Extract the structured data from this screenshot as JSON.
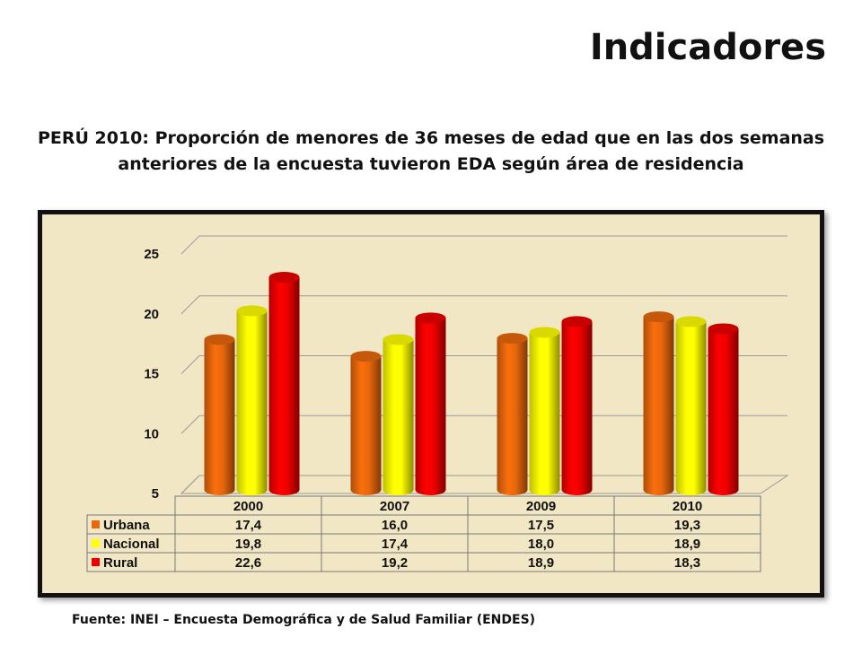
{
  "slide": {
    "title": "Indicadores",
    "chart_title_line1": "PERÚ 2010: Proporción de menores de 36 meses de edad que en las dos semanas",
    "chart_title_line2": "anteriores de la encuesta tuvieron EDA según área de residencia",
    "source": "Fuente: INEI – Encuesta Demográfica y de Salud Familiar (ENDES)"
  },
  "chart_data": {
    "type": "bar",
    "categories": [
      "2000",
      "2007",
      "2009",
      "2010"
    ],
    "series": [
      {
        "name": "Urbana",
        "values": [
          17.4,
          16.0,
          17.5,
          19.3
        ],
        "labels": [
          "17,4",
          "16,0",
          "17,5",
          "19,3"
        ],
        "color": "#e8670c"
      },
      {
        "name": "Nacional",
        "values": [
          19.8,
          17.4,
          18.0,
          18.9
        ],
        "labels": [
          "19,8",
          "17,4",
          "18,0",
          "18,9"
        ],
        "color": "#ffff00"
      },
      {
        "name": "Rural",
        "values": [
          22.6,
          19.2,
          18.9,
          18.3
        ],
        "labels": [
          "22,6",
          "19,2",
          "18,9",
          "18,3"
        ],
        "color": "#ee0000"
      }
    ],
    "ylim": [
      5,
      25
    ],
    "yticks": [
      5,
      10,
      15,
      20,
      25
    ],
    "grid": true,
    "data_table": true
  }
}
